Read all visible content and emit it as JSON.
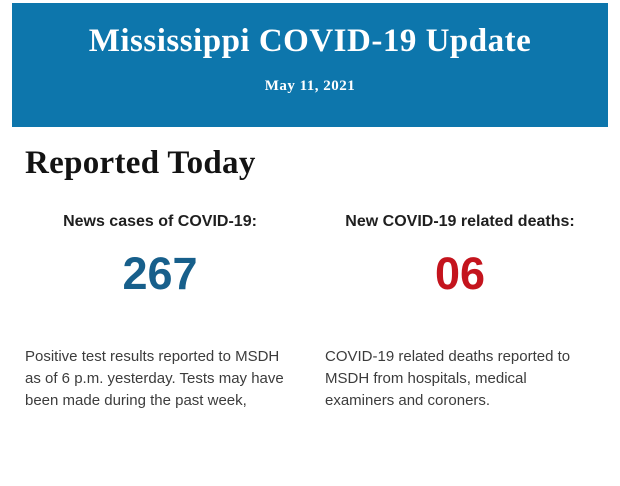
{
  "page": {
    "background_color": "#ffffff"
  },
  "banner": {
    "title": "Mississippi COVID-19 Update",
    "date": "May 11, 2021",
    "background_color": "#0d76ac",
    "text_color": "#ffffff"
  },
  "section": {
    "heading": "Reported Today"
  },
  "stats": [
    {
      "label": "News cases of COVID-19:",
      "value": "267",
      "value_color": "#175f8b",
      "description": "Positive test results reported to MSDH as of 6 p.m. yesterday. Tests may have been made during the past week,"
    },
    {
      "label": "New COVID-19 related deaths:",
      "value": "06",
      "value_color": "#c4141d",
      "description": "COVID-19 related deaths reported to MSDH from hospitals, medical examiners and coroners."
    }
  ]
}
